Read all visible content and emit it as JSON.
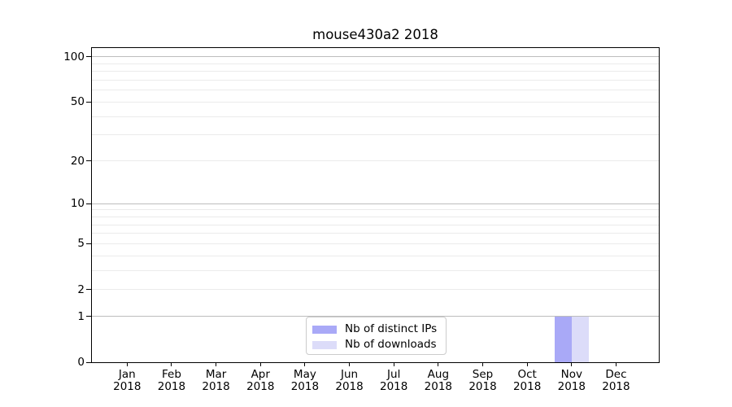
{
  "figure": {
    "title": "mouse430a2 2018"
  },
  "chart_data": {
    "type": "bar",
    "title": "mouse430a2 2018",
    "categories": [
      "Jan",
      "Feb",
      "Mar",
      "Apr",
      "May",
      "Jun",
      "Jul",
      "Aug",
      "Sep",
      "Oct",
      "Nov",
      "Dec"
    ],
    "x_tick_label_line2": "2018",
    "series": [
      {
        "name": "Nb of distinct IPs",
        "color": "#a9a9f7",
        "values": [
          0,
          0,
          0,
          0,
          0,
          0,
          0,
          0,
          0,
          0,
          1,
          0
        ]
      },
      {
        "name": "Nb of downloads",
        "color": "#dcdcf9",
        "values": [
          0,
          0,
          0,
          0,
          0,
          0,
          0,
          0,
          0,
          0,
          1,
          0
        ]
      }
    ],
    "y_axis": {
      "scale": "log10(value+1)",
      "tick_values": [
        0,
        1,
        2,
        5,
        10,
        20,
        50,
        100
      ],
      "tick_labels": [
        "0",
        "1",
        "2",
        "5",
        "10",
        "20",
        "50",
        "100"
      ],
      "major_gridlines": [
        1,
        10,
        100
      ],
      "minor_gridlines": [
        2,
        3,
        4,
        5,
        6,
        7,
        8,
        9,
        20,
        30,
        40,
        50,
        60,
        70,
        80,
        90
      ],
      "top_value": 114.6,
      "ylim": [
        0,
        114.6
      ]
    },
    "legend": {
      "position": "lower center",
      "entries": [
        "Nb of distinct IPs",
        "Nb of downloads"
      ]
    },
    "grid": true
  },
  "colors": {
    "background": "#ffffff",
    "spine": "#000000",
    "grid_major": "#bdbdbd",
    "grid_minor": "#ebebeb",
    "bar_distinct_ips": "#a9a9f7",
    "bar_downloads": "#dcdcf9",
    "legend_border": "#cccccc",
    "text": "#000000"
  }
}
